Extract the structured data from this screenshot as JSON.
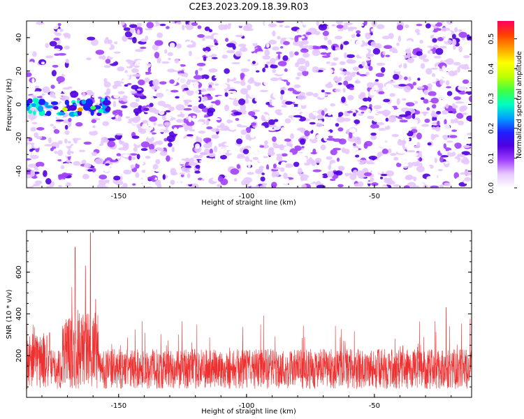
{
  "title": "C2E3.2023.209.18.39.R03",
  "chart_data": [
    {
      "type": "heatmap",
      "xlabel": "Height of straight line (km)",
      "ylabel": "Frequency (Hz)",
      "xlim": [
        -186,
        -12
      ],
      "ylim": [
        -50,
        50
      ],
      "xticks": [
        -150,
        -100,
        -50
      ],
      "yticks": [
        -40,
        -20,
        0,
        20,
        40
      ],
      "grid": false,
      "colorbar": {
        "label": "Normalized spectral amplitude",
        "range": [
          0,
          0.56
        ],
        "ticks": [
          0.0,
          0.1,
          0.2,
          0.3,
          0.4,
          0.5
        ],
        "colors": [
          "#ffffff",
          "#e6c8ff",
          "#a040ff",
          "#5000e0",
          "#2020ff",
          "#00a0ff",
          "#00ffc0",
          "#40ff40",
          "#c0ff00",
          "#ffff00",
          "#ffa000",
          "#ff4000",
          "#ff0060"
        ]
      },
      "hotspots": [
        {
          "x": -171,
          "y": -3,
          "value": 0.38
        },
        {
          "x": -165,
          "y": -3,
          "value": 0.45
        },
        {
          "x": -160,
          "y": -2,
          "value": 0.35
        },
        {
          "x": -157,
          "y": -4,
          "value": 0.3
        }
      ]
    },
    {
      "type": "line",
      "xlabel": "Height of straight line (km)",
      "ylabel": "SNR (10 * v/v)",
      "xlim": [
        -186,
        -12
      ],
      "ylim": [
        0,
        800
      ],
      "xticks": [
        -150,
        -100,
        -50
      ],
      "yticks": [
        200,
        400,
        600
      ],
      "grid": false,
      "series_color": "#ee3030",
      "baseline_mean": 120,
      "peaks": [
        {
          "x": -186,
          "y": 380
        },
        {
          "x": -177,
          "y": 310
        },
        {
          "x": -167,
          "y": 720
        },
        {
          "x": -163,
          "y": 630
        },
        {
          "x": -161,
          "y": 790
        },
        {
          "x": -159,
          "y": 470
        },
        {
          "x": -22,
          "y": 430
        }
      ]
    }
  ]
}
